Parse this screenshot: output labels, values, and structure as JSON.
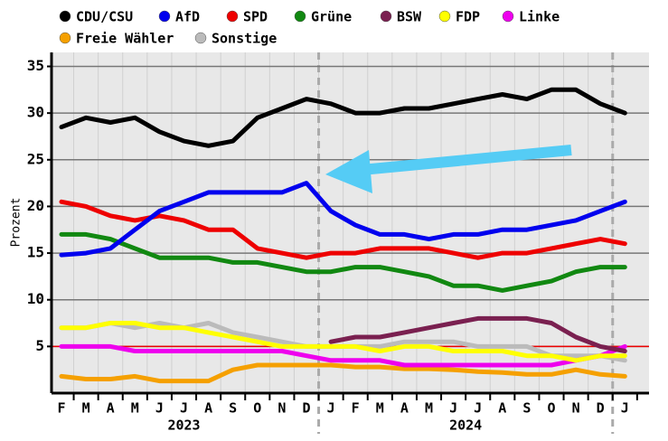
{
  "chart_data": {
    "type": "line",
    "y_label": "Prozent",
    "categories": [
      "F",
      "M",
      "A",
      "M",
      "J",
      "J",
      "A",
      "S",
      "O",
      "N",
      "D",
      "J",
      "F",
      "M",
      "A",
      "M",
      "J",
      "J",
      "A",
      "S",
      "O",
      "N",
      "D",
      "J"
    ],
    "year_labels": [
      {
        "label": "2023",
        "first": 0,
        "last": 10
      },
      {
        "label": "2024",
        "first": 11,
        "last": 22
      }
    ],
    "ylim": [
      0,
      36.5
    ],
    "yticks": [
      5,
      10,
      15,
      20,
      25,
      30,
      35
    ],
    "grid": true,
    "reference_line": 5,
    "series": [
      {
        "name": "CDU/CSU",
        "color": "#000000",
        "values": [
          28.5,
          29.5,
          29,
          29.5,
          28,
          27,
          26.5,
          27,
          29.5,
          30.5,
          31.5,
          31,
          30,
          30,
          30.5,
          30.5,
          31,
          31.5,
          32,
          31.5,
          32.5,
          32.5,
          31,
          30
        ]
      },
      {
        "name": "AfD",
        "color": "#0000ee",
        "values": [
          14.8,
          15,
          15.5,
          17.5,
          19.5,
          20.5,
          21.5,
          21.5,
          21.5,
          21.5,
          22.5,
          19.5,
          18,
          17,
          17,
          16.5,
          17,
          17,
          17.5,
          17.5,
          18,
          18.5,
          19.5,
          20.5
        ]
      },
      {
        "name": "SPD",
        "color": "#ee0000",
        "values": [
          20.5,
          20,
          19,
          18.5,
          19,
          18.5,
          17.5,
          17.5,
          15.5,
          15,
          14.5,
          15,
          15,
          15.5,
          15.5,
          15.5,
          15,
          14.5,
          15,
          15,
          15.5,
          16,
          16.5,
          16
        ]
      },
      {
        "name": "Grüne",
        "color": "#118811",
        "values": [
          17,
          17,
          16.5,
          15.5,
          14.5,
          14.5,
          14.5,
          14,
          14,
          13.5,
          13,
          13,
          13.5,
          13.5,
          13,
          12.5,
          11.5,
          11.5,
          11,
          11.5,
          12,
          13,
          13.5,
          13.5
        ]
      },
      {
        "name": "BSW",
        "color": "#7a2050",
        "values": [
          null,
          null,
          null,
          null,
          null,
          null,
          null,
          null,
          null,
          null,
          null,
          5.5,
          6,
          6,
          6.5,
          7,
          7.5,
          8,
          8,
          8,
          7.5,
          6,
          5,
          4.5
        ]
      },
      {
        "name": "FDP",
        "color": "#ffff00",
        "values": [
          7,
          7,
          7.5,
          7.5,
          7,
          7,
          6.5,
          6,
          5.5,
          5,
          5,
          5,
          5,
          4.5,
          5,
          5,
          4.5,
          4.5,
          4.5,
          4,
          4,
          3.5,
          4,
          4
        ]
      },
      {
        "name": "Linke",
        "color": "#ee00ee",
        "values": [
          5,
          5,
          5,
          4.5,
          4.5,
          4.5,
          4.5,
          4.5,
          4.5,
          4.5,
          4,
          3.5,
          3.5,
          3.5,
          3,
          3,
          3,
          3,
          3,
          3,
          3,
          3.5,
          4,
          5
        ]
      },
      {
        "name": "Freie Wähler",
        "color": "#f5a000",
        "values": [
          1.8,
          1.5,
          1.5,
          1.8,
          1.3,
          1.3,
          1.3,
          2.5,
          3,
          3,
          3,
          3,
          2.8,
          2.8,
          2.6,
          2.6,
          2.5,
          2.3,
          2.2,
          2,
          2,
          2.5,
          2,
          1.8
        ]
      },
      {
        "name": "Sonstige",
        "color": "#bbbbbb",
        "values": [
          7,
          7,
          7.5,
          7,
          7.5,
          7,
          7.5,
          6.5,
          6,
          5.5,
          5,
          5,
          5,
          5,
          5.5,
          5.5,
          5.5,
          5,
          5,
          5,
          4,
          4,
          4,
          3.5
        ]
      }
    ]
  }
}
